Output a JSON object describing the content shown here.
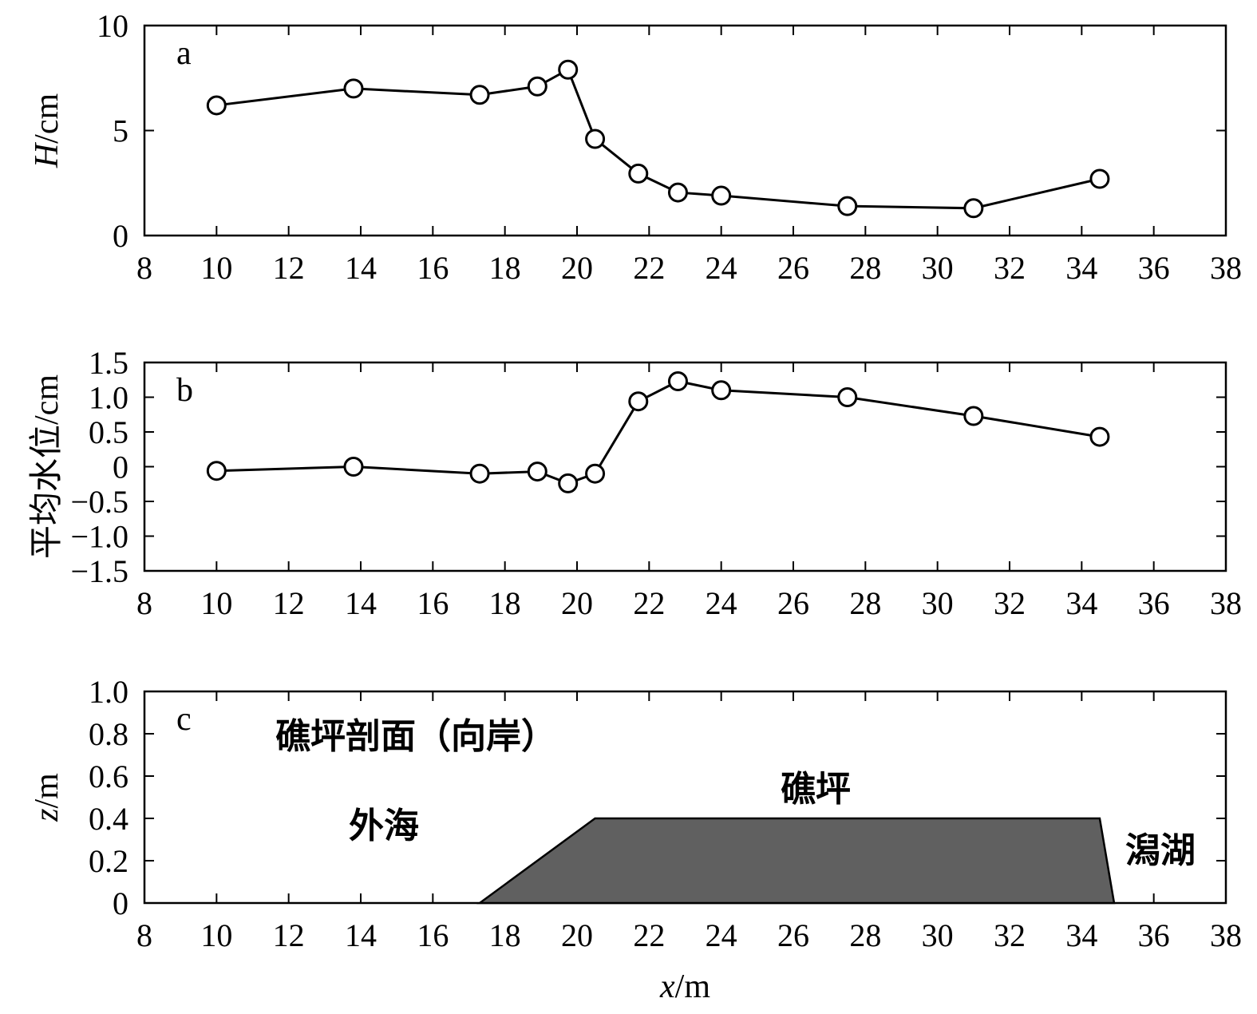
{
  "chart_data": [
    {
      "type": "line",
      "panel_label": "a",
      "ylabel_italic": "H",
      "ylabel_rest": "/cm",
      "xlim": [
        8,
        38
      ],
      "ylim": [
        0,
        10
      ],
      "xticks": [
        "8",
        "10",
        "12",
        "14",
        "16",
        "18",
        "20",
        "22",
        "24",
        "26",
        "28",
        "30",
        "32",
        "34",
        "36",
        "38"
      ],
      "yticks": [
        {
          "value": 0,
          "label": "0"
        },
        {
          "value": 5,
          "label": "5"
        },
        {
          "value": 10,
          "label": "10"
        }
      ],
      "x": [
        10,
        13.8,
        17.3,
        18.9,
        19.75,
        20.5,
        21.7,
        22.8,
        24.0,
        27.5,
        31.0,
        34.5
      ],
      "y": [
        6.2,
        7.0,
        6.7,
        7.1,
        7.9,
        4.6,
        2.95,
        2.05,
        1.9,
        1.4,
        1.3,
        2.7
      ],
      "grid": false
    },
    {
      "type": "line",
      "panel_label": "b",
      "ylabel": "平均水位/cm",
      "xlim": [
        8,
        38
      ],
      "ylim": [
        -1.5,
        1.5
      ],
      "xticks": [
        "8",
        "10",
        "12",
        "14",
        "16",
        "18",
        "20",
        "22",
        "24",
        "26",
        "28",
        "30",
        "32",
        "34",
        "36",
        "38"
      ],
      "yticks": [
        {
          "value": 1.5,
          "label": "1.5"
        },
        {
          "value": 1.0,
          "label": "1.0"
        },
        {
          "value": 0.5,
          "label": "0.5"
        },
        {
          "value": 0,
          "label": "0"
        },
        {
          "value": -0.5,
          "label": "−0.5"
        },
        {
          "value": -1.0,
          "label": "−1.0"
        },
        {
          "value": -1.5,
          "label": "−1.5"
        }
      ],
      "x": [
        10,
        13.8,
        17.3,
        18.9,
        19.75,
        20.5,
        21.7,
        22.8,
        24.0,
        27.5,
        31.0,
        34.5
      ],
      "y": [
        -0.06,
        0.0,
        -0.1,
        -0.07,
        -0.24,
        -0.1,
        0.94,
        1.23,
        1.1,
        1.0,
        0.73,
        0.43
      ],
      "grid": false
    },
    {
      "type": "area",
      "panel_label": "c",
      "ylabel_italic": "z",
      "ylabel_rest": "/m",
      "xlabel_italic": "x",
      "xlabel_rest": "/m",
      "xlim": [
        8,
        38
      ],
      "ylim": [
        0,
        1.0
      ],
      "xticks": [
        "8",
        "10",
        "12",
        "14",
        "16",
        "18",
        "20",
        "22",
        "24",
        "26",
        "28",
        "30",
        "32",
        "34",
        "36",
        "38"
      ],
      "yticks": [
        {
          "value": 0,
          "label": "0"
        },
        {
          "value": 0.2,
          "label": "0.2"
        },
        {
          "value": 0.4,
          "label": "0.4"
        },
        {
          "value": 0.6,
          "label": "0.6"
        },
        {
          "value": 0.8,
          "label": "0.8"
        },
        {
          "value": 1.0,
          "label": "1.0"
        }
      ],
      "profile_x": [
        17.3,
        20.5,
        34.5,
        34.9
      ],
      "profile_z": [
        0,
        0.4,
        0.4,
        0
      ],
      "annotations": {
        "title": "礁坪剖面（向岸）",
        "offshore": "外海",
        "reef_flat": "礁坪",
        "lagoon": "潟湖"
      },
      "colors": {
        "reef_fill": "#606060"
      },
      "grid": false
    }
  ]
}
